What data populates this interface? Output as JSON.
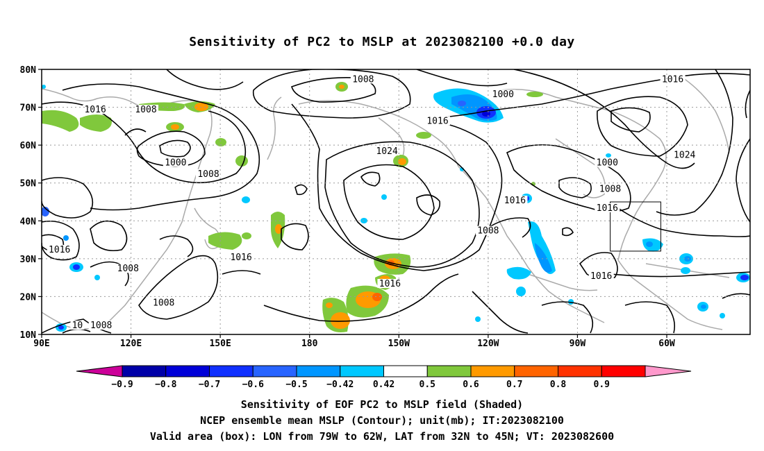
{
  "title": "Sensitivity of PC2 to MSLP at 2023082100 +0.0 day",
  "map": {
    "lat_ticks": [
      "80N",
      "70N",
      "60N",
      "50N",
      "40N",
      "30N",
      "20N",
      "10N"
    ],
    "lon_ticks": [
      "90E",
      "120E",
      "150E",
      "180",
      "150W",
      "120W",
      "90W",
      "60W"
    ],
    "contour_labels": [
      {
        "text": "1016",
        "lon": 108,
        "lat": 69
      },
      {
        "text": "1008",
        "lon": 125,
        "lat": 69
      },
      {
        "text": "1008",
        "lon": -162,
        "lat": 77
      },
      {
        "text": "1000",
        "lon": -115,
        "lat": 73
      },
      {
        "text": "1016",
        "lon": -58,
        "lat": 77
      },
      {
        "text": "1016",
        "lon": -137,
        "lat": 66
      },
      {
        "text": "1024",
        "lon": -154,
        "lat": 58
      },
      {
        "text": "1000",
        "lon": 135,
        "lat": 55
      },
      {
        "text": "1008",
        "lon": 146,
        "lat": 52
      },
      {
        "text": "1000",
        "lon": -80,
        "lat": 55
      },
      {
        "text": "1024",
        "lon": -54,
        "lat": 57
      },
      {
        "text": "1008",
        "lon": -79,
        "lat": 48
      },
      {
        "text": "1016",
        "lon": -80,
        "lat": 43
      },
      {
        "text": "1016",
        "lon": -111,
        "lat": 45
      },
      {
        "text": "1008",
        "lon": -120,
        "lat": 37
      },
      {
        "text": "1016",
        "lon": 96,
        "lat": 32
      },
      {
        "text": "1016",
        "lon": 157,
        "lat": 30
      },
      {
        "text": "1008",
        "lon": 119,
        "lat": 27
      },
      {
        "text": "1016",
        "lon": -153,
        "lat": 23
      },
      {
        "text": "1016",
        "lon": -82,
        "lat": 25
      },
      {
        "text": "1008",
        "lon": 131,
        "lat": 18
      },
      {
        "text": "1008",
        "lon": 110,
        "lat": 12
      },
      {
        "text": "10",
        "lon": 102,
        "lat": 12
      }
    ],
    "valid_box": {
      "lon_min": -79,
      "lon_max": -62,
      "lat_min": 32,
      "lat_max": 45
    }
  },
  "colorbar": {
    "labels": [
      "−0.9",
      "−0.8",
      "−0.7",
      "−0.6",
      "−0.5",
      "−0.42",
      "0.42",
      "0.5",
      "0.6",
      "0.7",
      "0.8",
      "0.9"
    ],
    "colors": [
      "#cc0099",
      "#0000a8",
      "#0000d8",
      "#1030ff",
      "#2864ff",
      "#0096ff",
      "#00c8ff",
      "#ffffff",
      "#80c83c",
      "#ff9a00",
      "#ff6400",
      "#ff3200",
      "#ff0000",
      "#ff99cc"
    ]
  },
  "captions": [
    "Sensitivity of EOF PC2 to MSLP field (Shaded)",
    "NCEP ensemble mean MSLP (Contour); unit(mb); IT:2023082100",
    "Valid area (box): LON from 79W to 62W, LAT from 32N to 45N; VT: 2023082600"
  ]
}
